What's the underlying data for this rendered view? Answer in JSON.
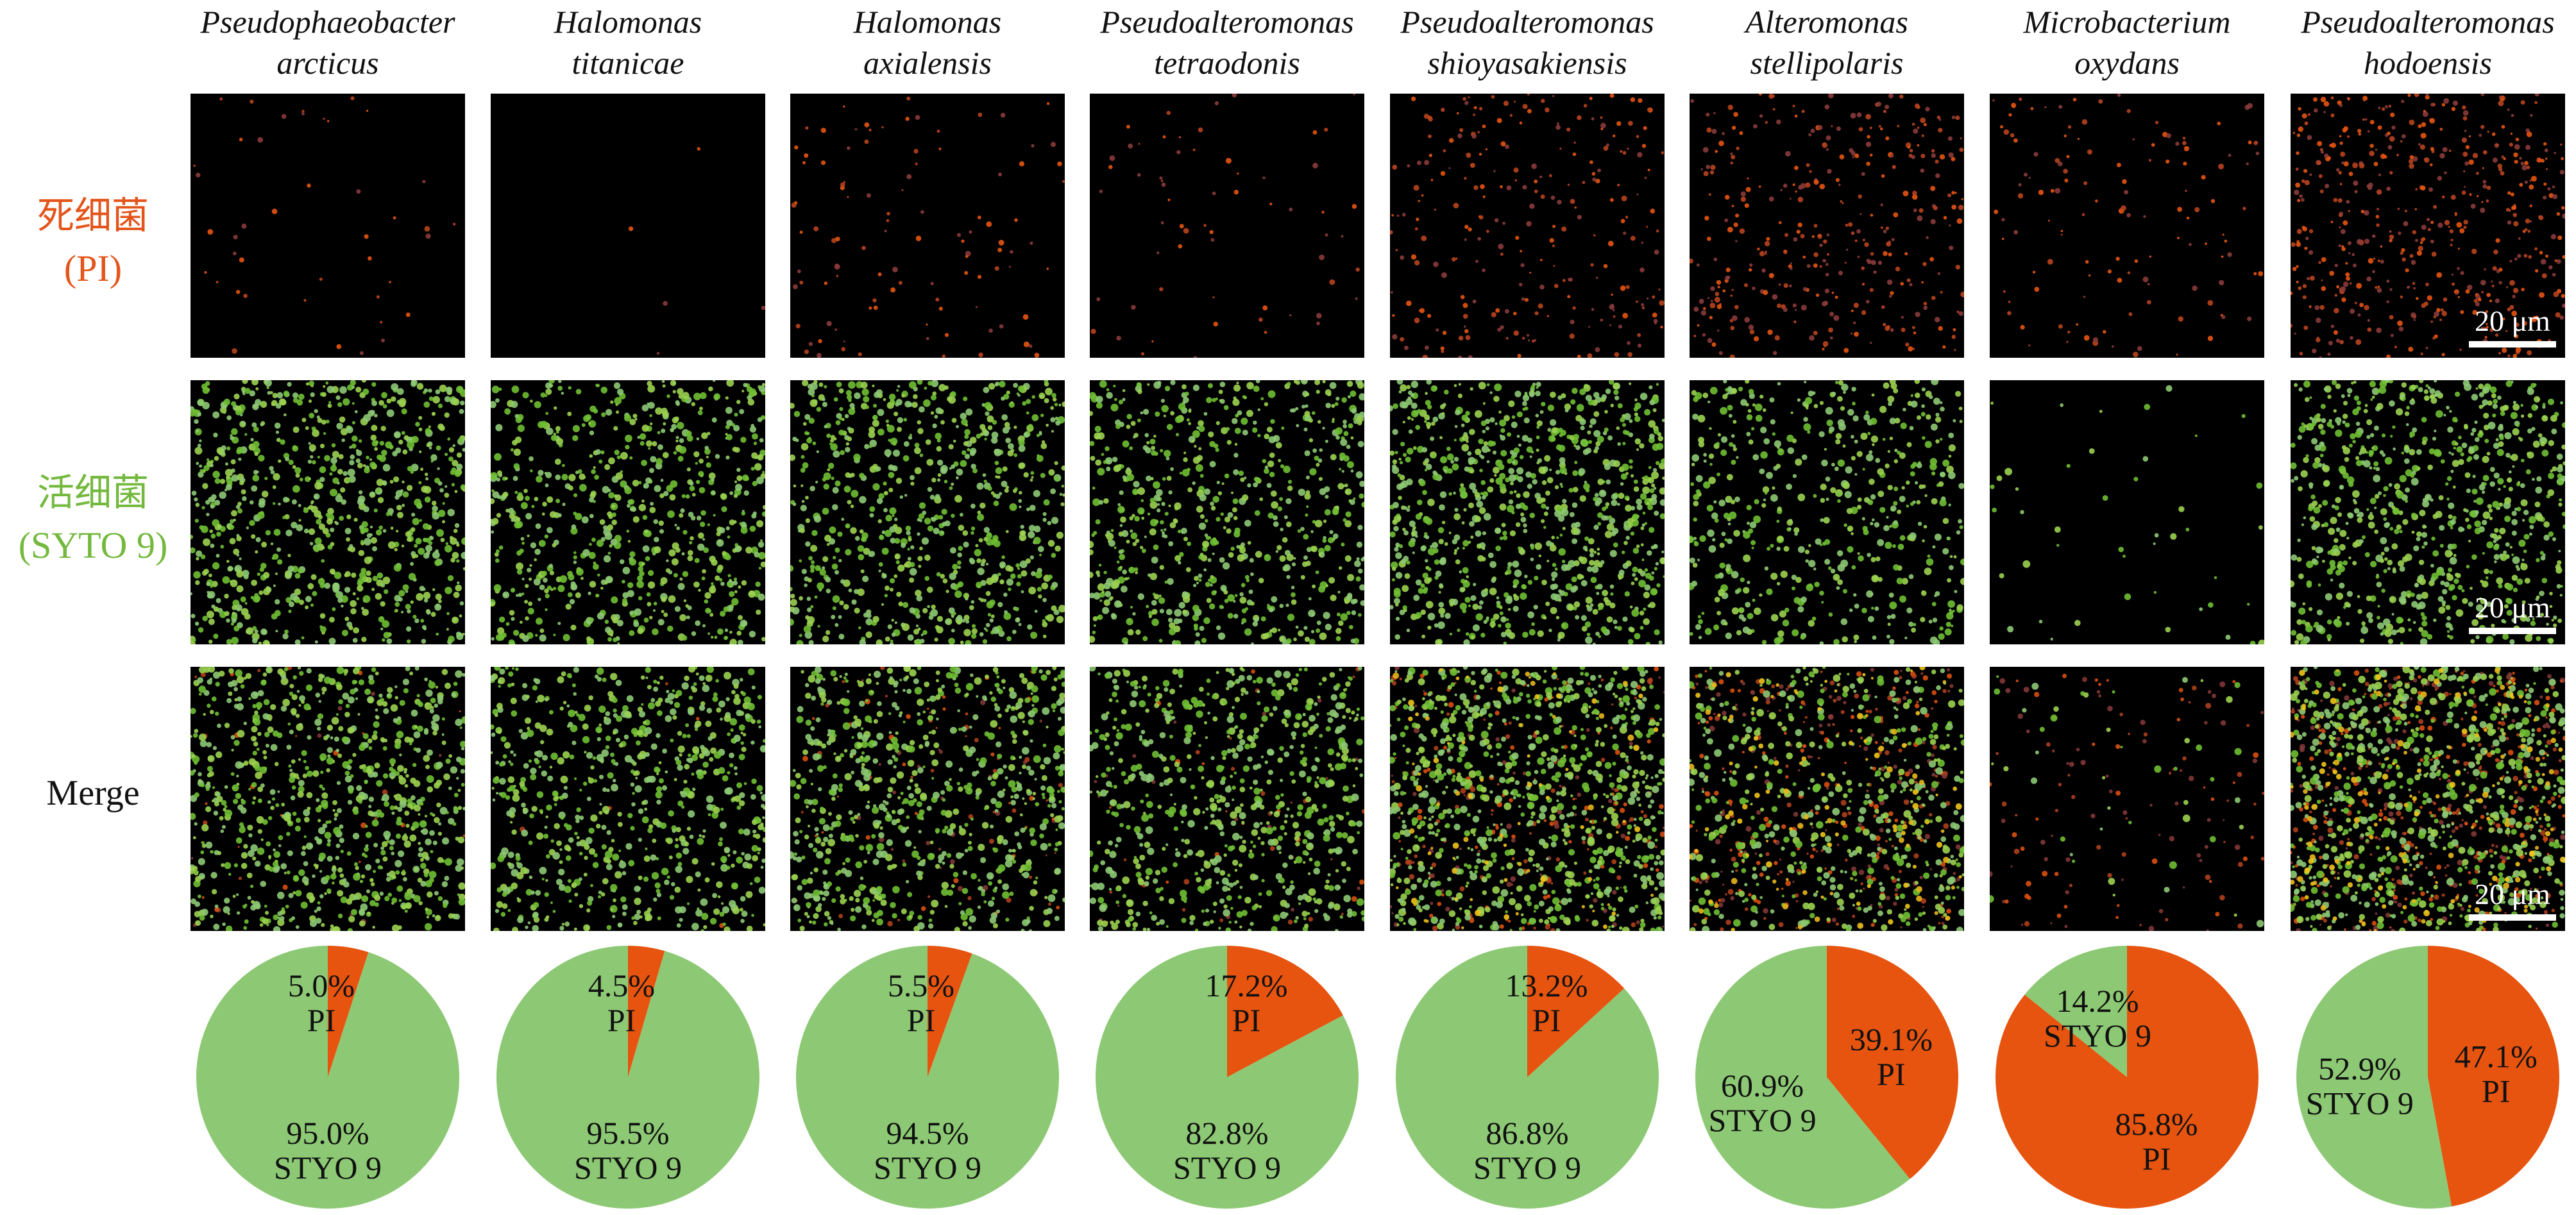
{
  "rows": {
    "dead": {
      "name": "死细菌",
      "stain": "(PI)"
    },
    "live": {
      "name": "活细菌",
      "stain": "(SYTO 9)"
    },
    "merge": {
      "name": "Merge"
    }
  },
  "scale_bar": "20 μm",
  "colors": {
    "pi": "#e6540f",
    "syto9": "#8dc974",
    "dead_label": "#e3551b",
    "live_label": "#74b93e",
    "panel_bg": "#000000"
  },
  "chart_data": {
    "type": "pie",
    "slice_labels": {
      "syto9": "STYO 9",
      "pi": "PI"
    },
    "species": [
      {
        "genus": "Pseudophaeobacter",
        "epithet": "arcticus",
        "pi_percent": 5.0,
        "syto9_percent": 95.0,
        "pi_label": "5.0%",
        "syto9_label": "95.0%"
      },
      {
        "genus": "Halomonas",
        "epithet": "titanicae",
        "pi_percent": 4.5,
        "syto9_percent": 95.5,
        "pi_label": "4.5%",
        "syto9_label": "95.5%"
      },
      {
        "genus": "Halomonas",
        "epithet": "axialensis",
        "pi_percent": 5.5,
        "syto9_percent": 94.5,
        "pi_label": "5.5%",
        "syto9_label": "94.5%"
      },
      {
        "genus": "Pseudoalteromonas",
        "epithet": "tetraodonis",
        "pi_percent": 17.2,
        "syto9_percent": 82.8,
        "pi_label": "17.2%",
        "syto9_label": "82.8%"
      },
      {
        "genus": "Pseudoalteromonas",
        "epithet": "shioyasakiensis",
        "pi_percent": 13.2,
        "syto9_percent": 86.8,
        "pi_label": "13.2%",
        "syto9_label": "86.8%"
      },
      {
        "genus": "Alteromonas",
        "epithet": "stellipolaris",
        "pi_percent": 39.1,
        "syto9_percent": 60.9,
        "pi_label": "39.1%",
        "syto9_label": "60.9%"
      },
      {
        "genus": "Microbacterium",
        "epithet": "oxydans",
        "pi_percent": 85.8,
        "syto9_percent": 14.2,
        "pi_label": "85.8%",
        "syto9_label": "14.2%"
      },
      {
        "genus": "Pseudoalteromonas",
        "epithet": "hodoensis",
        "pi_percent": 47.1,
        "syto9_percent": 52.9,
        "pi_label": "47.1%",
        "syto9_label": "52.9%"
      }
    ]
  },
  "micrographs": {
    "dead_density": [
      0.08,
      0.01,
      0.2,
      0.12,
      0.5,
      0.7,
      0.25,
      1.0
    ],
    "live_density": [
      0.95,
      0.8,
      0.85,
      0.8,
      1.0,
      0.6,
      0.05,
      0.9
    ],
    "scale_bar_columns": [
      8
    ]
  }
}
